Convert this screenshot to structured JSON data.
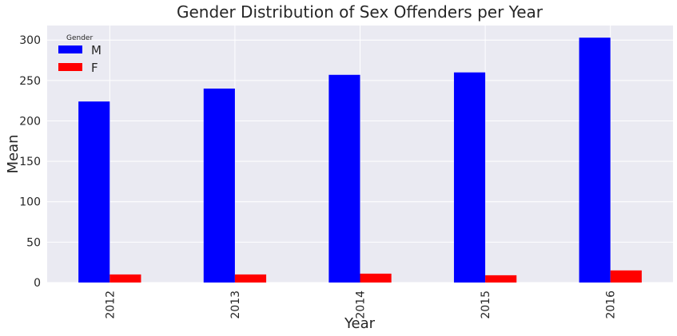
{
  "chart_data": {
    "type": "bar",
    "title": "Gender Distribution of Sex Offenders per Year",
    "xlabel": "Year",
    "ylabel": "Mean",
    "categories": [
      "2012",
      "2013",
      "2014",
      "2015",
      "2016"
    ],
    "series": [
      {
        "name": "M",
        "values": [
          224,
          240,
          257,
          260,
          303
        ],
        "color": "#0000ff"
      },
      {
        "name": "F",
        "values": [
          10,
          10,
          11,
          9,
          15
        ],
        "color": "#ff0000"
      }
    ],
    "ylim": [
      0,
      318
    ],
    "yticks": [
      0,
      50,
      100,
      150,
      200,
      250,
      300
    ],
    "grid": true,
    "legend": {
      "title": "Gender",
      "position": "top-left"
    },
    "background_color": "#eaeaf2",
    "grid_color": "#ffffff"
  }
}
